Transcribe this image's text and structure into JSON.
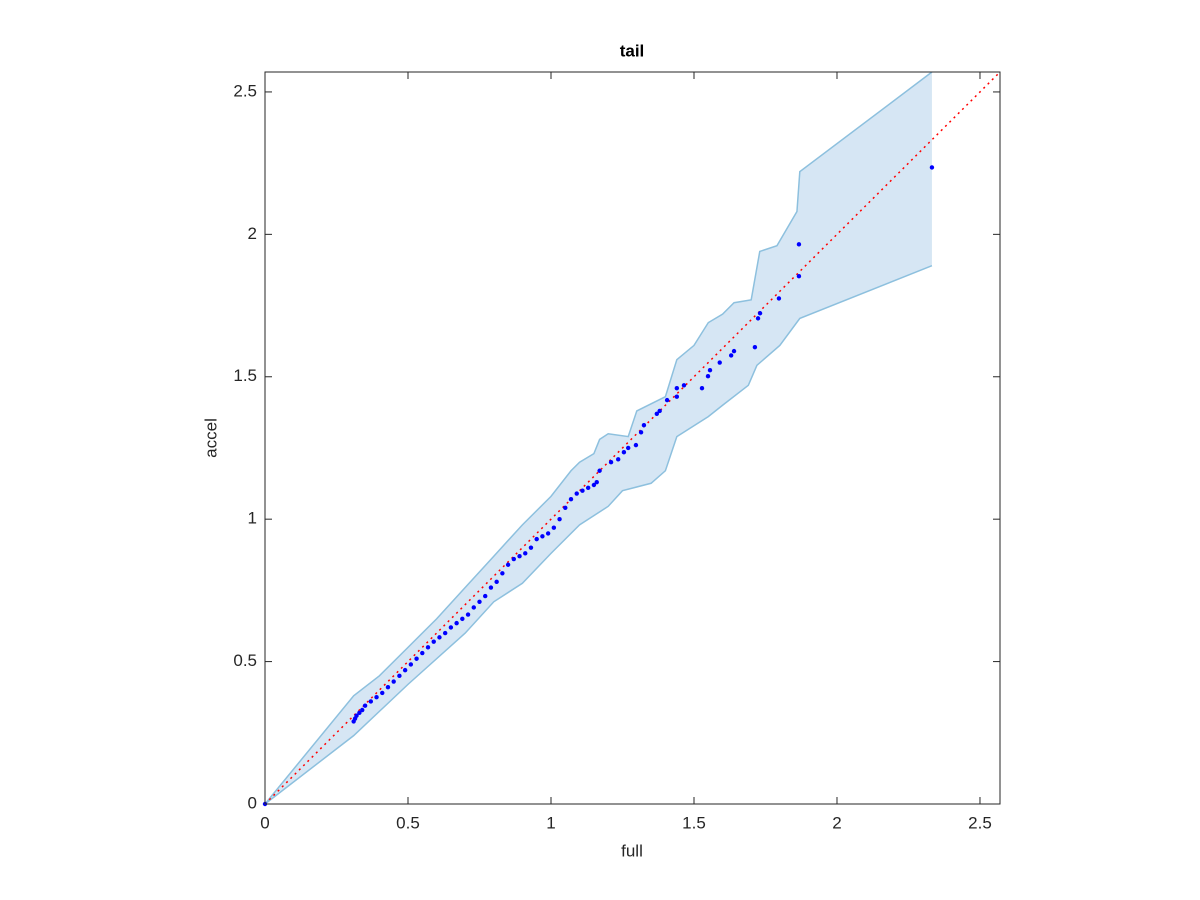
{
  "chart_data": {
    "type": "scatter",
    "title": "tail",
    "x_label": "full",
    "y_label": "accel",
    "xlim": [
      0,
      2.57
    ],
    "ylim": [
      0,
      2.57
    ],
    "xticks": [
      0,
      0.5,
      1,
      1.5,
      2,
      2.5
    ],
    "yticks": [
      0,
      0.5,
      1,
      1.5,
      2,
      2.5
    ],
    "points": {
      "color": "#0000ff",
      "x": [
        0,
        0.31,
        0.315,
        0.32,
        0.33,
        0.34,
        0.35,
        0.37,
        0.39,
        0.41,
        0.43,
        0.45,
        0.47,
        0.49,
        0.51,
        0.53,
        0.55,
        0.57,
        0.59,
        0.61,
        0.63,
        0.65,
        0.67,
        0.69,
        0.71,
        0.73,
        0.75,
        0.77,
        0.79,
        0.81,
        0.83,
        0.85,
        0.87,
        0.89,
        0.91,
        0.93,
        0.95,
        0.97,
        0.99,
        1.01,
        1.03,
        1.05,
        1.07,
        1.09,
        1.11,
        1.13,
        1.15,
        1.16,
        1.17,
        1.21,
        1.235,
        1.255,
        1.27,
        1.297,
        1.315,
        1.325,
        1.37,
        1.38,
        1.406,
        1.44,
        1.44,
        1.465,
        1.528,
        1.549,
        1.556,
        1.59,
        1.63,
        1.64,
        1.713,
        1.724,
        1.731,
        1.797,
        1.867,
        1.867,
        2.332
      ],
      "y": [
        0,
        0.29,
        0.3,
        0.31,
        0.32,
        0.33,
        0.345,
        0.36,
        0.375,
        0.39,
        0.41,
        0.43,
        0.45,
        0.47,
        0.49,
        0.51,
        0.53,
        0.55,
        0.57,
        0.585,
        0.6,
        0.62,
        0.635,
        0.65,
        0.665,
        0.69,
        0.71,
        0.73,
        0.76,
        0.78,
        0.81,
        0.84,
        0.86,
        0.87,
        0.88,
        0.9,
        0.93,
        0.94,
        0.95,
        0.97,
        1.0,
        1.04,
        1.07,
        1.09,
        1.1,
        1.11,
        1.12,
        1.13,
        1.17,
        1.2,
        1.21,
        1.235,
        1.25,
        1.26,
        1.305,
        1.33,
        1.37,
        1.38,
        1.418,
        1.43,
        1.46,
        1.47,
        1.46,
        1.502,
        1.523,
        1.55,
        1.575,
        1.59,
        1.604,
        1.705,
        1.723,
        1.775,
        1.853,
        1.965,
        2.235
      ]
    },
    "reference": {
      "color": "#ff0000",
      "x": [
        0,
        2.57
      ],
      "y": [
        0,
        2.57
      ]
    },
    "band": {
      "fill": "#d6e6f4",
      "stroke": "#8dc0de",
      "upper": {
        "x": [
          0,
          0.31,
          0.4,
          0.5,
          0.6,
          0.7,
          0.8,
          0.9,
          1.0,
          1.07,
          1.1,
          1.15,
          1.17,
          1.2,
          1.27,
          1.3,
          1.4,
          1.44,
          1.5,
          1.55,
          1.6,
          1.64,
          1.7,
          1.73,
          1.79,
          1.86,
          1.87,
          2.332
        ],
        "y": [
          0,
          0.38,
          0.45,
          0.55,
          0.65,
          0.76,
          0.87,
          0.98,
          1.08,
          1.17,
          1.2,
          1.23,
          1.28,
          1.3,
          1.29,
          1.38,
          1.43,
          1.56,
          1.61,
          1.69,
          1.72,
          1.76,
          1.77,
          1.94,
          1.96,
          2.08,
          2.22,
          2.57
        ]
      },
      "lower": {
        "x": [
          0,
          0.31,
          0.5,
          0.7,
          0.8,
          0.9,
          1.0,
          1.1,
          1.2,
          1.25,
          1.35,
          1.4,
          1.44,
          1.55,
          1.6,
          1.69,
          1.72,
          1.8,
          1.87,
          2.332
        ],
        "y": [
          0,
          0.24,
          0.42,
          0.6,
          0.71,
          0.775,
          0.88,
          0.98,
          1.045,
          1.1,
          1.126,
          1.17,
          1.29,
          1.36,
          1.4,
          1.47,
          1.54,
          1.61,
          1.705,
          1.89
        ]
      }
    }
  }
}
